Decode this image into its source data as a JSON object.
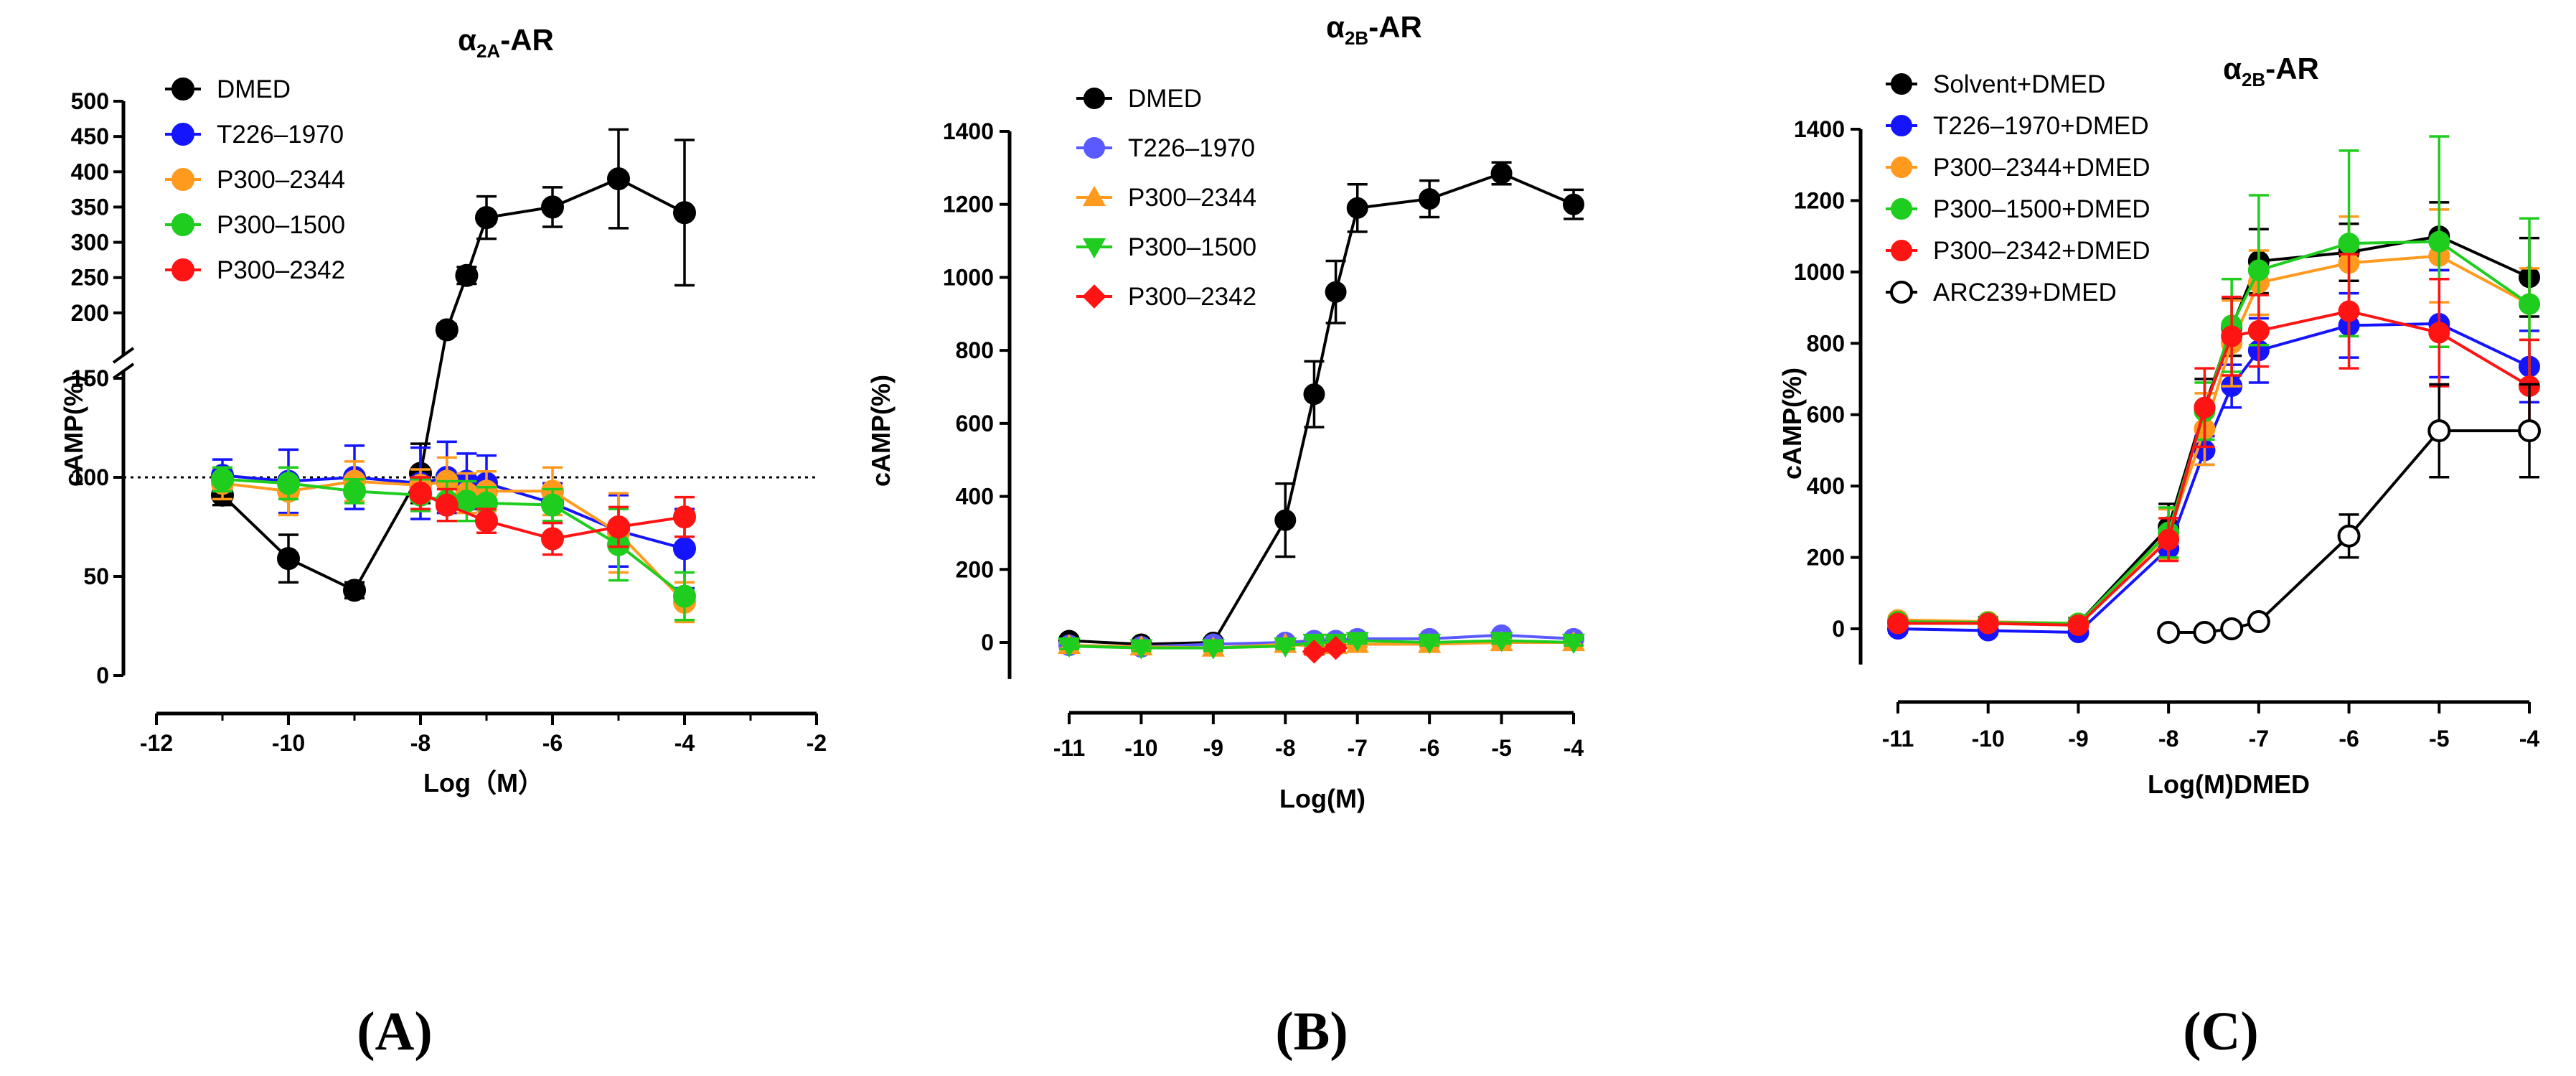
{
  "chart_data": [
    {
      "panel": "(A)",
      "type": "line",
      "title_base": "α",
      "title_sub": "2A",
      "title_rest": "-AR",
      "xlabel": "Log（M）",
      "ylabel": "cAMP(%)",
      "xlim": [
        -12,
        -2
      ],
      "xticks": [
        -12,
        -10,
        -8,
        -6,
        -4,
        -2
      ],
      "y_lower_range": [
        0,
        150
      ],
      "y_upper_range": [
        150,
        500
      ],
      "yticks_lower": [
        0,
        50,
        100,
        150
      ],
      "yticks_upper": [
        150,
        200,
        250,
        300,
        350,
        400,
        450,
        500
      ],
      "reference_line": 100,
      "series": [
        {
          "name": "DMED",
          "color": "#000000",
          "marker": "circle",
          "points": [
            [
              -11,
              91,
              5
            ],
            [
              -10,
              59,
              12
            ],
            [
              -9,
              43,
              4
            ],
            [
              -8,
              102,
              15
            ],
            [
              -7.6,
              176,
              8
            ],
            [
              -7.3,
              253,
              12
            ],
            [
              -7,
              335,
              30
            ],
            [
              -6,
              350,
              28
            ],
            [
              -5,
              390,
              70
            ],
            [
              -4,
              342,
              103
            ]
          ]
        },
        {
          "name": "T226–1970",
          "color": "#1414ff",
          "marker": "circle",
          "points": [
            [
              -11,
              101,
              8
            ],
            [
              -10,
              98,
              16
            ],
            [
              -9,
              100,
              16
            ],
            [
              -8,
              97,
              18
            ],
            [
              -7.6,
              100,
              18
            ],
            [
              -7.3,
              98,
              14
            ],
            [
              -7,
              97,
              14
            ],
            [
              -6,
              87,
              10
            ],
            [
              -5,
              73,
              18
            ],
            [
              -4,
              64,
              20
            ]
          ]
        },
        {
          "name": "P300–2344",
          "color": "#ff9a1e",
          "marker": "circle",
          "points": [
            [
              -11,
              97,
              8
            ],
            [
              -10,
              93,
              12
            ],
            [
              -9,
              98,
              10
            ],
            [
              -8,
              96,
              8
            ],
            [
              -7.6,
              98,
              12
            ],
            [
              -7.3,
              92,
              10
            ],
            [
              -7,
              93,
              10
            ],
            [
              -6,
              93,
              12
            ],
            [
              -5,
              72,
              20
            ],
            [
              -4,
              37,
              10
            ]
          ]
        },
        {
          "name": "P300–1500",
          "color": "#1ecd1e",
          "marker": "circle",
          "points": [
            [
              -11,
              99,
              6
            ],
            [
              -10,
              97,
              8
            ],
            [
              -9,
              93,
              6
            ],
            [
              -8,
              91,
              8
            ],
            [
              -7.6,
              88,
              10
            ],
            [
              -7.3,
              88,
              10
            ],
            [
              -7,
              87,
              8
            ],
            [
              -6,
              86,
              8
            ],
            [
              -5,
              66,
              18
            ],
            [
              -4,
              40,
              12
            ]
          ]
        },
        {
          "name": "P300–2342",
          "color": "#ff1414",
          "marker": "circle",
          "points": [
            [
              -8,
              92,
              8
            ],
            [
              -7.6,
              86,
              8
            ],
            [
              -7,
              78,
              6
            ],
            [
              -6,
              69,
              8
            ],
            [
              -5,
              75,
              10
            ],
            [
              -4,
              80,
              10
            ]
          ]
        }
      ]
    },
    {
      "panel": "(B)",
      "type": "line",
      "title_base": "α",
      "title_sub": "2B",
      "title_rest": "-AR",
      "xlabel": "Log(M)",
      "ylabel": "cAMP(%)",
      "xlim": [
        -11,
        -4
      ],
      "xticks": [
        -11,
        -10,
        -9,
        -8,
        -7,
        -6,
        -5,
        -4
      ],
      "ylim": [
        -100,
        1400
      ],
      "yticks": [
        0,
        200,
        400,
        600,
        800,
        1000,
        1200,
        1400
      ],
      "series": [
        {
          "name": "DMED",
          "color": "#000000",
          "marker": "circle",
          "points": [
            [
              -11,
              5,
              10
            ],
            [
              -10,
              -5,
              10
            ],
            [
              -9,
              0,
              10
            ],
            [
              -8,
              335,
              100
            ],
            [
              -7.6,
              680,
              90
            ],
            [
              -7.3,
              960,
              85
            ],
            [
              -7,
              1190,
              65
            ],
            [
              -6,
              1215,
              50
            ],
            [
              -5,
              1285,
              30
            ],
            [
              -4,
              1200,
              40
            ]
          ]
        },
        {
          "name": "T226–1970",
          "color": "#5a5aff",
          "marker": "circle",
          "points": [
            [
              -11,
              -8,
              8
            ],
            [
              -10,
              -12,
              8
            ],
            [
              -9,
              -5,
              8
            ],
            [
              -8,
              0,
              8
            ],
            [
              -7.6,
              5,
              8
            ],
            [
              -7.3,
              5,
              8
            ],
            [
              -7,
              10,
              8
            ],
            [
              -6,
              10,
              8
            ],
            [
              -5,
              20,
              8
            ],
            [
              -4,
              10,
              8
            ]
          ]
        },
        {
          "name": "P300–2344",
          "color": "#ff9a1e",
          "marker": "triangle-up",
          "points": [
            [
              -11,
              -8,
              8
            ],
            [
              -10,
              -12,
              8
            ],
            [
              -9,
              -15,
              8
            ],
            [
              -8,
              -5,
              8
            ],
            [
              -7.6,
              -10,
              8
            ],
            [
              -7.3,
              -8,
              8
            ],
            [
              -7,
              -5,
              8
            ],
            [
              -6,
              -5,
              8
            ],
            [
              -5,
              0,
              8
            ],
            [
              -4,
              0,
              8
            ]
          ]
        },
        {
          "name": "P300–1500",
          "color": "#1ecd1e",
          "marker": "triangle-down",
          "points": [
            [
              -11,
              -10,
              8
            ],
            [
              -10,
              -15,
              8
            ],
            [
              -9,
              -15,
              8
            ],
            [
              -8,
              -10,
              8
            ],
            [
              -7.6,
              0,
              8
            ],
            [
              -7.3,
              0,
              8
            ],
            [
              -7,
              5,
              8
            ],
            [
              -6,
              0,
              8
            ],
            [
              -5,
              5,
              8
            ],
            [
              -4,
              0,
              8
            ]
          ]
        },
        {
          "name": "P300–2342",
          "color": "#ff1414",
          "marker": "diamond",
          "points": [
            [
              -7.6,
              -25,
              8
            ],
            [
              -7.3,
              -15,
              8
            ]
          ]
        }
      ]
    },
    {
      "panel": "(C)",
      "type": "line",
      "title_base": "α",
      "title_sub": "2B",
      "title_rest": "-AR",
      "xlabel": "Log(M)DMED",
      "ylabel": "cAMP(%)",
      "xlim": [
        -11,
        -4
      ],
      "xticks": [
        -11,
        -10,
        -9,
        -8,
        -7,
        -6,
        -5,
        -4
      ],
      "ylim": [
        -100,
        1400
      ],
      "yticks": [
        0,
        200,
        400,
        600,
        800,
        1000,
        1200,
        1400
      ],
      "series": [
        {
          "name": "Solvent+DMED",
          "color": "#000000",
          "marker": "circle",
          "points": [
            [
              -11,
              20,
              15
            ],
            [
              -10,
              18,
              15
            ],
            [
              -9,
              15,
              15
            ],
            [
              -8,
              285,
              65
            ],
            [
              -7.6,
              620,
              80
            ],
            [
              -7.3,
              845,
              80
            ],
            [
              -7,
              1030,
              90
            ],
            [
              -6,
              1055,
              80
            ],
            [
              -5,
              1100,
              95
            ],
            [
              -4,
              985,
              110
            ]
          ]
        },
        {
          "name": "T226–1970+DMED",
          "color": "#1414ff",
          "marker": "circle",
          "points": [
            [
              -11,
              0,
              10
            ],
            [
              -10,
              -5,
              10
            ],
            [
              -9,
              -10,
              10
            ],
            [
              -8,
              225,
              30
            ],
            [
              -7.6,
              500,
              40
            ],
            [
              -7.3,
              680,
              60
            ],
            [
              -7,
              780,
              90
            ],
            [
              -6,
              850,
              90
            ],
            [
              -5,
              855,
              150
            ],
            [
              -4,
              735,
              100
            ]
          ]
        },
        {
          "name": "P300–2344+DMED",
          "color": "#ff9a1e",
          "marker": "circle",
          "points": [
            [
              -11,
              25,
              10
            ],
            [
              -10,
              20,
              10
            ],
            [
              -9,
              15,
              10
            ],
            [
              -8,
              265,
              70
            ],
            [
              -7.6,
              560,
              100
            ],
            [
              -7.3,
              800,
              120
            ],
            [
              -7,
              970,
              90
            ],
            [
              -6,
              1025,
              130
            ],
            [
              -5,
              1045,
              130
            ],
            [
              -4,
              910,
              100
            ]
          ]
        },
        {
          "name": "P300–1500+DMED",
          "color": "#1ecd1e",
          "marker": "circle",
          "points": [
            [
              -11,
              20,
              10
            ],
            [
              -10,
              18,
              10
            ],
            [
              -9,
              15,
              10
            ],
            [
              -8,
              270,
              70
            ],
            [
              -7.6,
              610,
              80
            ],
            [
              -7.3,
              850,
              130
            ],
            [
              -7,
              1005,
              210
            ],
            [
              -6,
              1080,
              260
            ],
            [
              -5,
              1085,
              295
            ],
            [
              -4,
              910,
              240
            ]
          ]
        },
        {
          "name": "P300–2342+DMED",
          "color": "#ff1414",
          "marker": "circle",
          "points": [
            [
              -11,
              15,
              10
            ],
            [
              -10,
              15,
              10
            ],
            [
              -9,
              10,
              10
            ],
            [
              -8,
              250,
              60
            ],
            [
              -7.6,
              620,
              110
            ],
            [
              -7.3,
              820,
              110
            ],
            [
              -7,
              835,
              100
            ],
            [
              -6,
              890,
              160
            ],
            [
              -5,
              830,
              150
            ],
            [
              -4,
              680,
              130
            ]
          ]
        },
        {
          "name": "ARC239+DMED",
          "color": "#000000",
          "marker": "open-circle",
          "points": [
            [
              -8,
              -10,
              10
            ],
            [
              -7.6,
              -10,
              10
            ],
            [
              -7.3,
              0,
              10
            ],
            [
              -7,
              20,
              10
            ],
            [
              -6,
              260,
              60
            ],
            [
              -5,
              555,
              130
            ],
            [
              -4,
              555,
              130
            ]
          ]
        }
      ]
    }
  ]
}
